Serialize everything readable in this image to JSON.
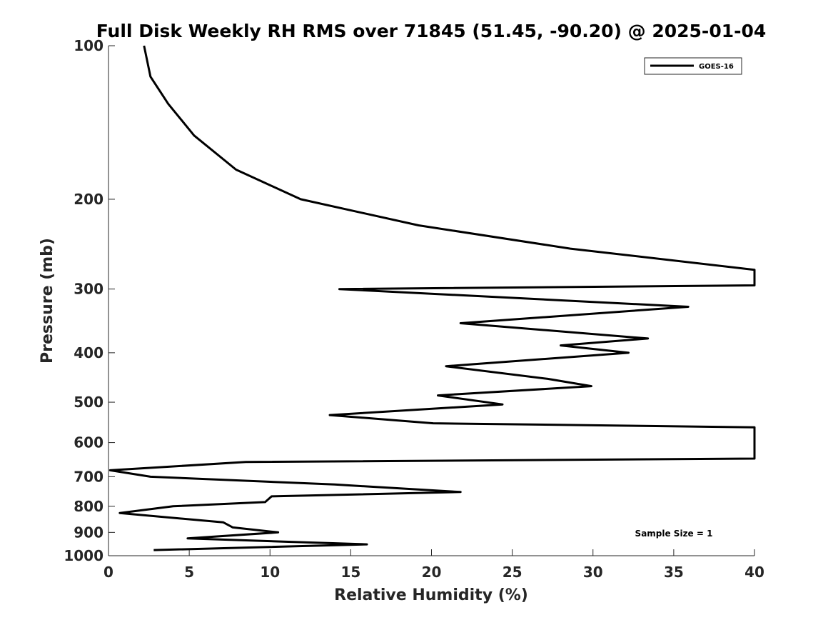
{
  "chart_data": {
    "type": "line",
    "title": "Full Disk Weekly RH RMS over 71845 (51.45, -90.20) @ 2025-01-04",
    "xlabel": "Relative Humidity (%)",
    "ylabel": "Pressure (mb)",
    "xlim": [
      0,
      40
    ],
    "ylim": [
      100,
      1000
    ],
    "y_scale": "log",
    "y_reversed": true,
    "x_ticks": [
      0,
      5,
      10,
      15,
      20,
      25,
      30,
      35,
      40
    ],
    "x_tick_labels": [
      "0",
      "5",
      "10",
      "15",
      "20",
      "25",
      "30",
      "35",
      "40"
    ],
    "y_ticks": [
      100,
      200,
      300,
      400,
      500,
      600,
      700,
      800,
      900,
      1000
    ],
    "y_tick_labels": [
      "100",
      "200",
      "300",
      "400",
      "500",
      "600",
      "700",
      "800",
      "900",
      "1000"
    ],
    "grid": false,
    "legend_position": "top-right",
    "annotation": "Sample Size = 1",
    "series": [
      {
        "name": "GOES-16",
        "color": "#000000",
        "points": [
          {
            "x": 2.2,
            "p": 100
          },
          {
            "x": 2.6,
            "p": 115
          },
          {
            "x": 3.7,
            "p": 130
          },
          {
            "x": 5.3,
            "p": 150
          },
          {
            "x": 7.9,
            "p": 175
          },
          {
            "x": 11.9,
            "p": 200
          },
          {
            "x": 19.2,
            "p": 225
          },
          {
            "x": 28.6,
            "p": 250
          },
          {
            "x": 40.0,
            "p": 275
          },
          {
            "x": 40.0,
            "p": 295
          },
          {
            "x": 14.3,
            "p": 300
          },
          {
            "x": 35.9,
            "p": 325
          },
          {
            "x": 21.8,
            "p": 350
          },
          {
            "x": 33.4,
            "p": 375
          },
          {
            "x": 28.0,
            "p": 387
          },
          {
            "x": 32.2,
            "p": 400
          },
          {
            "x": 20.9,
            "p": 425
          },
          {
            "x": 27.2,
            "p": 450
          },
          {
            "x": 29.9,
            "p": 465
          },
          {
            "x": 20.4,
            "p": 485
          },
          {
            "x": 24.4,
            "p": 505
          },
          {
            "x": 13.7,
            "p": 530
          },
          {
            "x": 20.1,
            "p": 550
          },
          {
            "x": 40.0,
            "p": 560
          },
          {
            "x": 40.0,
            "p": 645
          },
          {
            "x": 8.5,
            "p": 655
          },
          {
            "x": 0.1,
            "p": 680
          },
          {
            "x": 2.6,
            "p": 700
          },
          {
            "x": 14.0,
            "p": 725
          },
          {
            "x": 21.8,
            "p": 750
          },
          {
            "x": 10.1,
            "p": 765
          },
          {
            "x": 9.7,
            "p": 785
          },
          {
            "x": 4.0,
            "p": 800
          },
          {
            "x": 0.7,
            "p": 825
          },
          {
            "x": 7.1,
            "p": 860
          },
          {
            "x": 7.7,
            "p": 880
          },
          {
            "x": 10.5,
            "p": 900
          },
          {
            "x": 4.9,
            "p": 925
          },
          {
            "x": 16.0,
            "p": 950
          },
          {
            "x": 2.8,
            "p": 975
          }
        ]
      }
    ]
  }
}
